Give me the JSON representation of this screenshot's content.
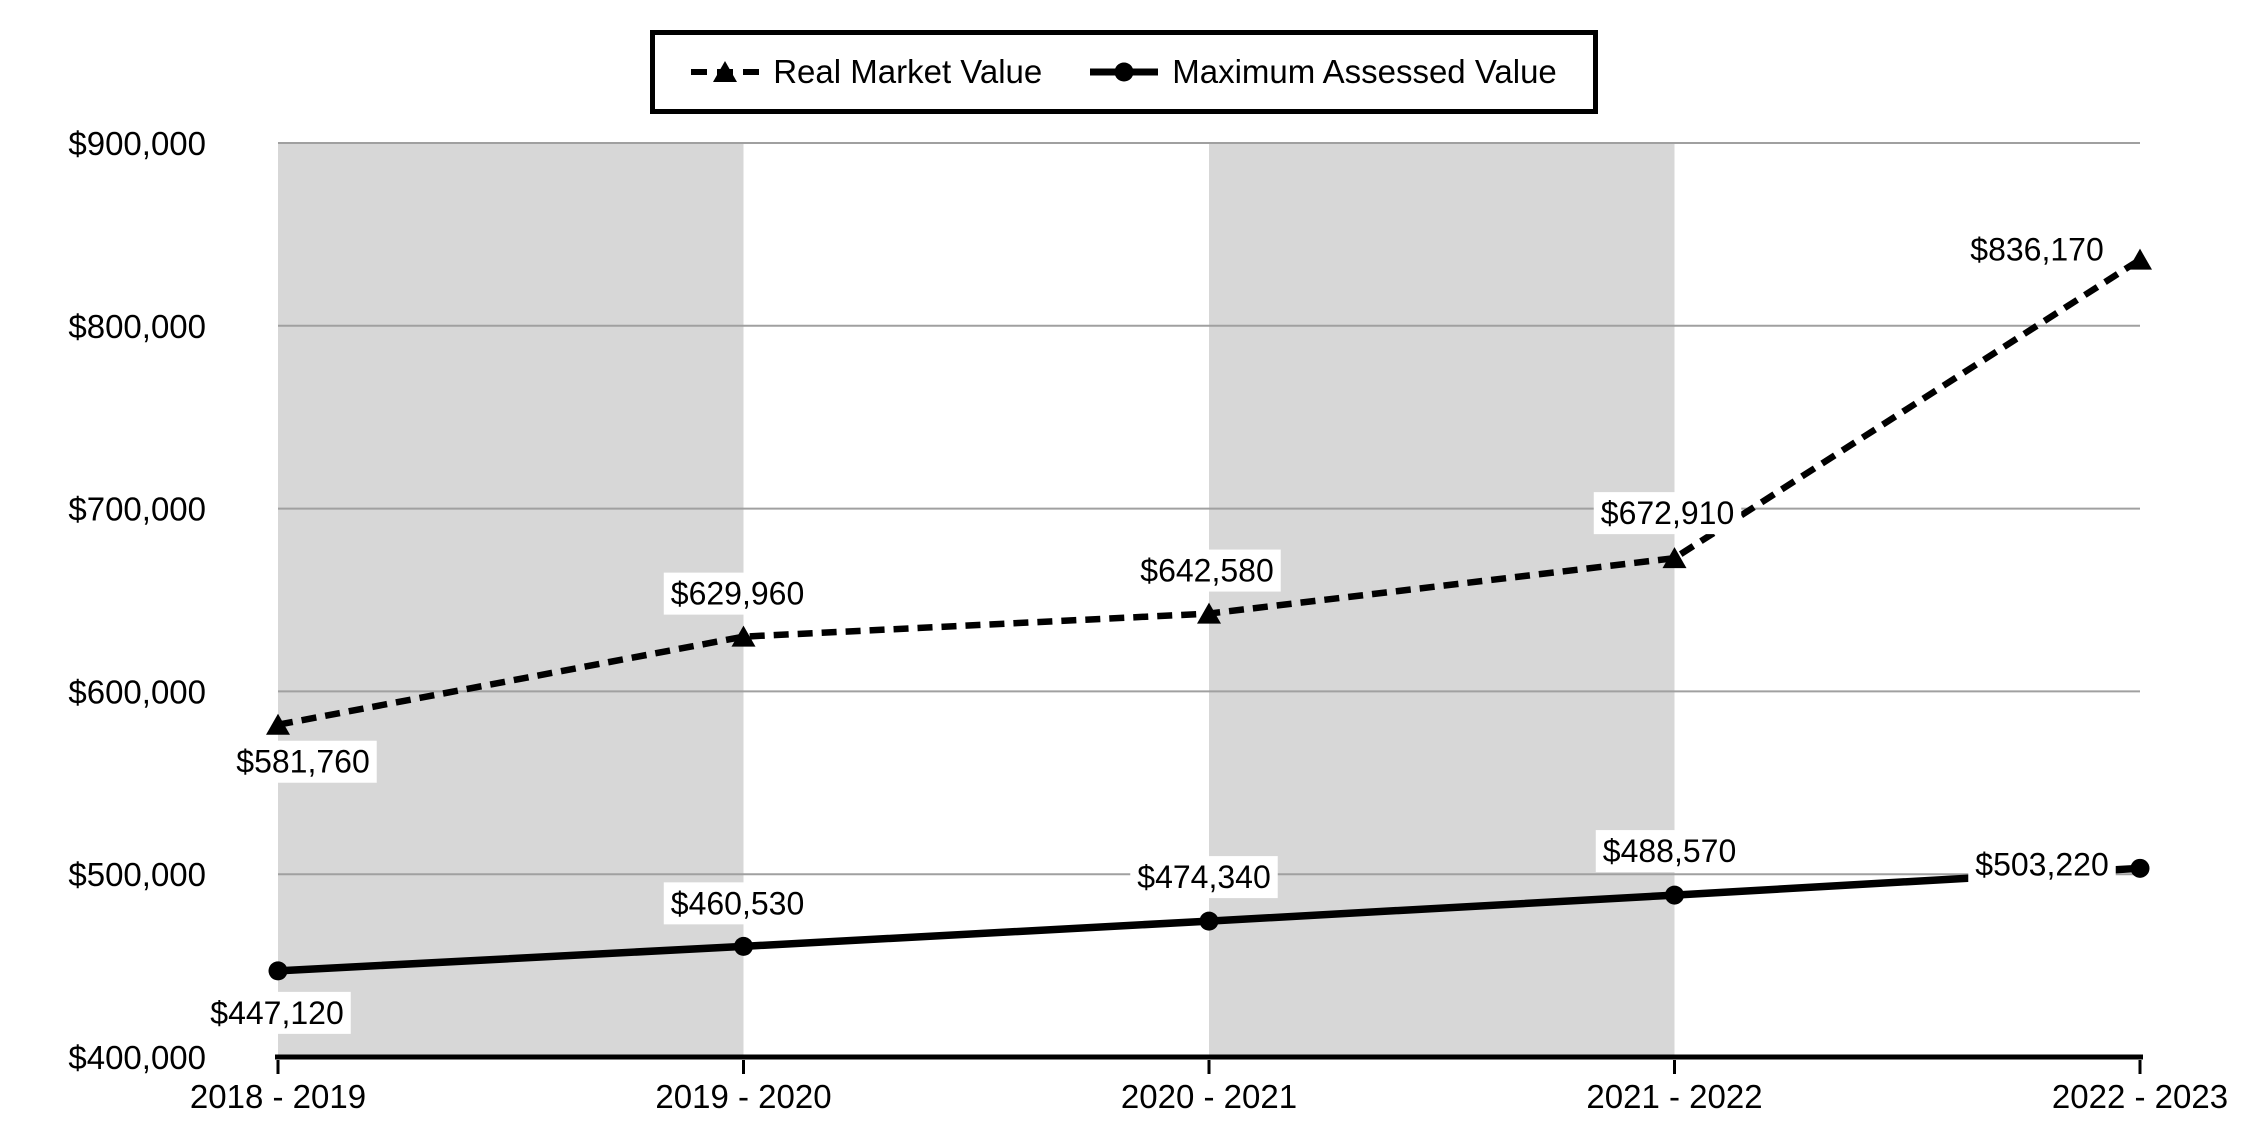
{
  "legend": {
    "items": [
      {
        "label": "Real Market Value"
      },
      {
        "label": "Maximum Assessed Value"
      }
    ]
  },
  "chart_data": {
    "type": "line",
    "title": "",
    "xlabel": "",
    "ylabel": "",
    "categories": [
      "2018 - 2019",
      "2019 - 2020",
      "2020 - 2021",
      "2021 - 2022",
      "2022 - 2023"
    ],
    "series": [
      {
        "name": "Real Market Value",
        "line_style": "dashed",
        "marker": "triangle",
        "color": "#000000",
        "values": [
          581760,
          629960,
          642580,
          672910,
          836170
        ],
        "labels": [
          "$581,760",
          "$629,960",
          "$642,580",
          "$672,910",
          "$836,170"
        ]
      },
      {
        "name": "Maximum Assessed Value",
        "line_style": "solid",
        "marker": "circle",
        "color": "#000000",
        "values": [
          447120,
          460530,
          474340,
          488570,
          503220
        ],
        "labels": [
          "$447,120",
          "$460,530",
          "$474,340",
          "$488,570",
          "$503,220"
        ]
      }
    ],
    "ylim": [
      400000,
      900000
    ],
    "yticks": [
      400000,
      500000,
      600000,
      700000,
      800000,
      900000
    ],
    "ytick_labels": [
      "$400,000",
      "$500,000",
      "$600,000",
      "$700,000",
      "$800,000",
      "$900,000"
    ],
    "grid": "horizontal",
    "legend_position": "top-center",
    "background_bands": {
      "color": "#d7d7d7",
      "category_spans": [
        [
          0,
          1
        ],
        [
          2,
          3
        ]
      ]
    },
    "colors": {
      "gridline": "#a0a0a0",
      "axis": "#000000",
      "band": "#d7d7d7",
      "text": "#000000",
      "label_background": "#ffffff"
    }
  }
}
